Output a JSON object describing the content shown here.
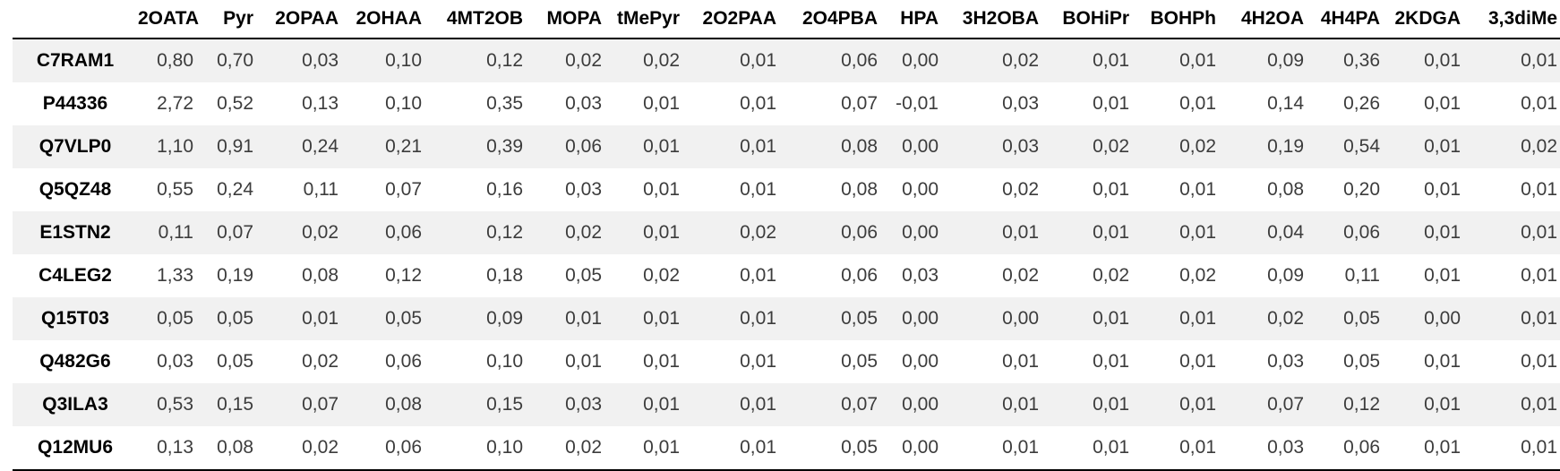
{
  "colors": {
    "stripe": "#f1f1f1",
    "row_alt": "#ffffff",
    "border": "#000000",
    "header_text": "#000000",
    "value_text": "#3c3c3c"
  },
  "chart_data": {
    "type": "table",
    "title": "",
    "columns": [
      "2OATA",
      "Pyr",
      "2OPAA",
      "2OHAA",
      "4MT2OB",
      "MOPA",
      "tMePyr",
      "2O2PAA",
      "2O4PBA",
      "HPA",
      "3H2OBA",
      "BOHiPr",
      "BOHPh",
      "4H2OA",
      "4H4PA",
      "2KDGA",
      "3,3diMe"
    ],
    "rows": [
      {
        "id": "C7RAM1",
        "values": [
          "0,80",
          "0,70",
          "0,03",
          "0,10",
          "0,12",
          "0,02",
          "0,02",
          "0,01",
          "0,06",
          "0,00",
          "0,02",
          "0,01",
          "0,01",
          "0,09",
          "0,36",
          "0,01",
          "0,01"
        ]
      },
      {
        "id": "P44336",
        "values": [
          "2,72",
          "0,52",
          "0,13",
          "0,10",
          "0,35",
          "0,03",
          "0,01",
          "0,01",
          "0,07",
          "-0,01",
          "0,03",
          "0,01",
          "0,01",
          "0,14",
          "0,26",
          "0,01",
          "0,01"
        ]
      },
      {
        "id": "Q7VLP0",
        "values": [
          "1,10",
          "0,91",
          "0,24",
          "0,21",
          "0,39",
          "0,06",
          "0,01",
          "0,01",
          "0,08",
          "0,00",
          "0,03",
          "0,02",
          "0,02",
          "0,19",
          "0,54",
          "0,01",
          "0,02"
        ]
      },
      {
        "id": "Q5QZ48",
        "values": [
          "0,55",
          "0,24",
          "0,11",
          "0,07",
          "0,16",
          "0,03",
          "0,01",
          "0,01",
          "0,08",
          "0,00",
          "0,02",
          "0,01",
          "0,01",
          "0,08",
          "0,20",
          "0,01",
          "0,01"
        ]
      },
      {
        "id": "E1STN2",
        "values": [
          "0,11",
          "0,07",
          "0,02",
          "0,06",
          "0,12",
          "0,02",
          "0,01",
          "0,02",
          "0,06",
          "0,00",
          "0,01",
          "0,01",
          "0,01",
          "0,04",
          "0,06",
          "0,01",
          "0,01"
        ]
      },
      {
        "id": "C4LEG2",
        "values": [
          "1,33",
          "0,19",
          "0,08",
          "0,12",
          "0,18",
          "0,05",
          "0,02",
          "0,01",
          "0,06",
          "0,03",
          "0,02",
          "0,02",
          "0,02",
          "0,09",
          "0,11",
          "0,01",
          "0,01"
        ]
      },
      {
        "id": "Q15T03",
        "values": [
          "0,05",
          "0,05",
          "0,01",
          "0,05",
          "0,09",
          "0,01",
          "0,01",
          "0,01",
          "0,05",
          "0,00",
          "0,00",
          "0,01",
          "0,01",
          "0,02",
          "0,05",
          "0,00",
          "0,01"
        ]
      },
      {
        "id": "Q482G6",
        "values": [
          "0,03",
          "0,05",
          "0,02",
          "0,06",
          "0,10",
          "0,01",
          "0,01",
          "0,01",
          "0,05",
          "0,00",
          "0,01",
          "0,01",
          "0,01",
          "0,03",
          "0,05",
          "0,01",
          "0,01"
        ]
      },
      {
        "id": "Q3ILA3",
        "values": [
          "0,53",
          "0,15",
          "0,07",
          "0,08",
          "0,15",
          "0,03",
          "0,01",
          "0,01",
          "0,07",
          "0,00",
          "0,01",
          "0,01",
          "0,01",
          "0,07",
          "0,12",
          "0,01",
          "0,01"
        ]
      },
      {
        "id": "Q12MU6",
        "values": [
          "0,13",
          "0,08",
          "0,02",
          "0,06",
          "0,10",
          "0,02",
          "0,01",
          "0,01",
          "0,05",
          "0,00",
          "0,01",
          "0,01",
          "0,01",
          "0,03",
          "0,06",
          "0,01",
          "0,01"
        ]
      }
    ]
  }
}
